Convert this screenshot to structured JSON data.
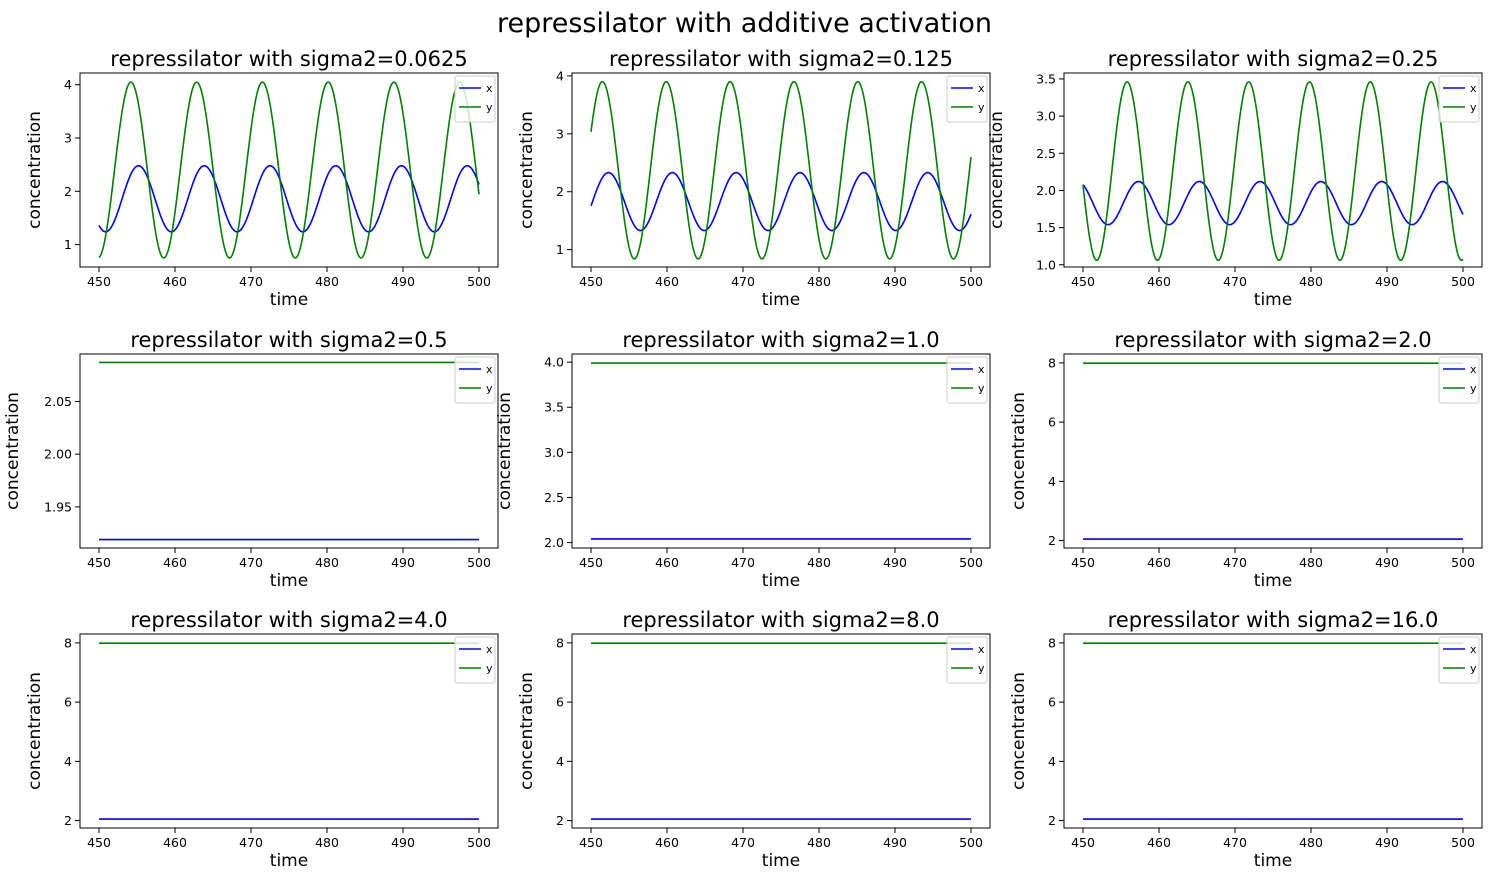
{
  "figure_title": "repressilator with additive activation",
  "colors": {
    "x": "#0000ff",
    "y": "#008000"
  },
  "chart_data": [
    {
      "type": "line",
      "title": "repressilator with sigma2=0.0625",
      "xlabel": "time",
      "ylabel": "concentration",
      "xlim": [
        447.5,
        502.5
      ],
      "ylim": [
        0.58,
        4.22
      ],
      "xticks": [
        450,
        460,
        470,
        480,
        490,
        500
      ],
      "yticks": [
        1,
        2,
        3,
        4
      ],
      "ytick_labels": [
        "1",
        "2",
        "3",
        "4"
      ],
      "legend": "upper right",
      "series": [
        {
          "name": "x",
          "color": "#0000ff",
          "kind": "sine",
          "mean": 1.86,
          "amp": 0.62,
          "period": 8.65,
          "first_peak": 455.2
        },
        {
          "name": "y",
          "color": "#008000",
          "kind": "sine",
          "mean": 2.4,
          "amp": 1.65,
          "period": 8.65,
          "first_peak": 454.2
        }
      ]
    },
    {
      "type": "line",
      "title": "repressilator with sigma2=0.125",
      "xlabel": "time",
      "ylabel": "concentration",
      "xlim": [
        447.5,
        502.5
      ],
      "ylim": [
        0.7,
        4.05
      ],
      "xticks": [
        450,
        460,
        470,
        480,
        490,
        500
      ],
      "yticks": [
        1,
        2,
        3,
        4
      ],
      "ytick_labels": [
        "1",
        "2",
        "3",
        "4"
      ],
      "legend": "upper right",
      "series": [
        {
          "name": "x",
          "color": "#0000ff",
          "kind": "sine",
          "mean": 1.83,
          "amp": 0.5,
          "period": 8.4,
          "first_peak": 452.3
        },
        {
          "name": "y",
          "color": "#008000",
          "kind": "sine",
          "mean": 2.37,
          "amp": 1.53,
          "period": 8.4,
          "first_peak": 451.5
        }
      ]
    },
    {
      "type": "line",
      "title": "repressilator with sigma2=0.25",
      "xlabel": "time",
      "ylabel": "concentration",
      "xlim": [
        447.5,
        502.5
      ],
      "ylim": [
        0.97,
        3.58
      ],
      "xticks": [
        450,
        460,
        470,
        480,
        490,
        500
      ],
      "yticks": [
        1.0,
        1.5,
        2.0,
        2.5,
        3.0,
        3.5
      ],
      "ytick_labels": [
        "1.0",
        "1.5",
        "2.0",
        "2.5",
        "3.0",
        "3.5"
      ],
      "legend": "upper right",
      "series": [
        {
          "name": "x",
          "color": "#0000ff",
          "kind": "sine",
          "mean": 1.83,
          "amp": 0.29,
          "period": 8.0,
          "first_peak": 449.3
        },
        {
          "name": "y",
          "color": "#008000",
          "kind": "sine",
          "mean": 2.26,
          "amp": 1.2,
          "period": 8.0,
          "first_peak": 455.8
        }
      ]
    },
    {
      "type": "line",
      "title": "repressilator with sigma2=0.5",
      "xlabel": "time",
      "ylabel": "concentration",
      "xlim": [
        447.5,
        502.5
      ],
      "ylim": [
        1.911,
        2.095
      ],
      "xticks": [
        450,
        460,
        470,
        480,
        490,
        500
      ],
      "yticks": [
        1.95,
        2.0,
        2.05
      ],
      "ytick_labels": [
        "1.95",
        "2.00",
        "2.05"
      ],
      "legend": "upper right",
      "series": [
        {
          "name": "x",
          "color": "#0000ff",
          "kind": "const",
          "value": 1.919
        },
        {
          "name": "y",
          "color": "#008000",
          "kind": "const",
          "value": 2.087
        }
      ]
    },
    {
      "type": "line",
      "title": "repressilator with sigma2=1.0",
      "xlabel": "time",
      "ylabel": "concentration",
      "xlim": [
        447.5,
        502.5
      ],
      "ylim": [
        1.94,
        4.09
      ],
      "xticks": [
        450,
        460,
        470,
        480,
        490,
        500
      ],
      "yticks": [
        2.0,
        2.5,
        3.0,
        3.5,
        4.0
      ],
      "ytick_labels": [
        "2.0",
        "2.5",
        "3.0",
        "3.5",
        "4.0"
      ],
      "legend": "upper right",
      "series": [
        {
          "name": "x",
          "color": "#0000ff",
          "kind": "const",
          "value": 2.04
        },
        {
          "name": "y",
          "color": "#008000",
          "kind": "const",
          "value": 3.99
        }
      ]
    },
    {
      "type": "line",
      "title": "repressilator with sigma2=2.0",
      "xlabel": "time",
      "ylabel": "concentration",
      "xlim": [
        447.5,
        502.5
      ],
      "ylim": [
        1.75,
        8.3
      ],
      "xticks": [
        450,
        460,
        470,
        480,
        490,
        500
      ],
      "yticks": [
        2,
        4,
        6,
        8
      ],
      "ytick_labels": [
        "2",
        "4",
        "6",
        "8"
      ],
      "legend": "upper right",
      "series": [
        {
          "name": "x",
          "color": "#0000ff",
          "kind": "const",
          "value": 2.05
        },
        {
          "name": "y",
          "color": "#008000",
          "kind": "const",
          "value": 7.99
        }
      ]
    },
    {
      "type": "line",
      "title": "repressilator with sigma2=4.0",
      "xlabel": "time",
      "ylabel": "concentration",
      "xlim": [
        447.5,
        502.5
      ],
      "ylim": [
        1.75,
        8.3
      ],
      "xticks": [
        450,
        460,
        470,
        480,
        490,
        500
      ],
      "yticks": [
        2,
        4,
        6,
        8
      ],
      "ytick_labels": [
        "2",
        "4",
        "6",
        "8"
      ],
      "legend": "upper right",
      "series": [
        {
          "name": "x",
          "color": "#0000ff",
          "kind": "const",
          "value": 2.05
        },
        {
          "name": "y",
          "color": "#008000",
          "kind": "const",
          "value": 7.99
        }
      ]
    },
    {
      "type": "line",
      "title": "repressilator with sigma2=8.0",
      "xlabel": "time",
      "ylabel": "concentration",
      "xlim": [
        447.5,
        502.5
      ],
      "ylim": [
        1.75,
        8.3
      ],
      "xticks": [
        450,
        460,
        470,
        480,
        490,
        500
      ],
      "yticks": [
        2,
        4,
        6,
        8
      ],
      "ytick_labels": [
        "2",
        "4",
        "6",
        "8"
      ],
      "legend": "upper right",
      "series": [
        {
          "name": "x",
          "color": "#0000ff",
          "kind": "const",
          "value": 2.05
        },
        {
          "name": "y",
          "color": "#008000",
          "kind": "const",
          "value": 7.99
        }
      ]
    },
    {
      "type": "line",
      "title": "repressilator with sigma2=16.0",
      "xlabel": "time",
      "ylabel": "concentration",
      "xlim": [
        447.5,
        502.5
      ],
      "ylim": [
        1.75,
        8.3
      ],
      "xticks": [
        450,
        460,
        470,
        480,
        490,
        500
      ],
      "yticks": [
        2,
        4,
        6,
        8
      ],
      "ytick_labels": [
        "2",
        "4",
        "6",
        "8"
      ],
      "legend": "upper right",
      "series": [
        {
          "name": "x",
          "color": "#0000ff",
          "kind": "const",
          "value": 2.05
        },
        {
          "name": "y",
          "color": "#008000",
          "kind": "const",
          "value": 7.99
        }
      ]
    }
  ]
}
